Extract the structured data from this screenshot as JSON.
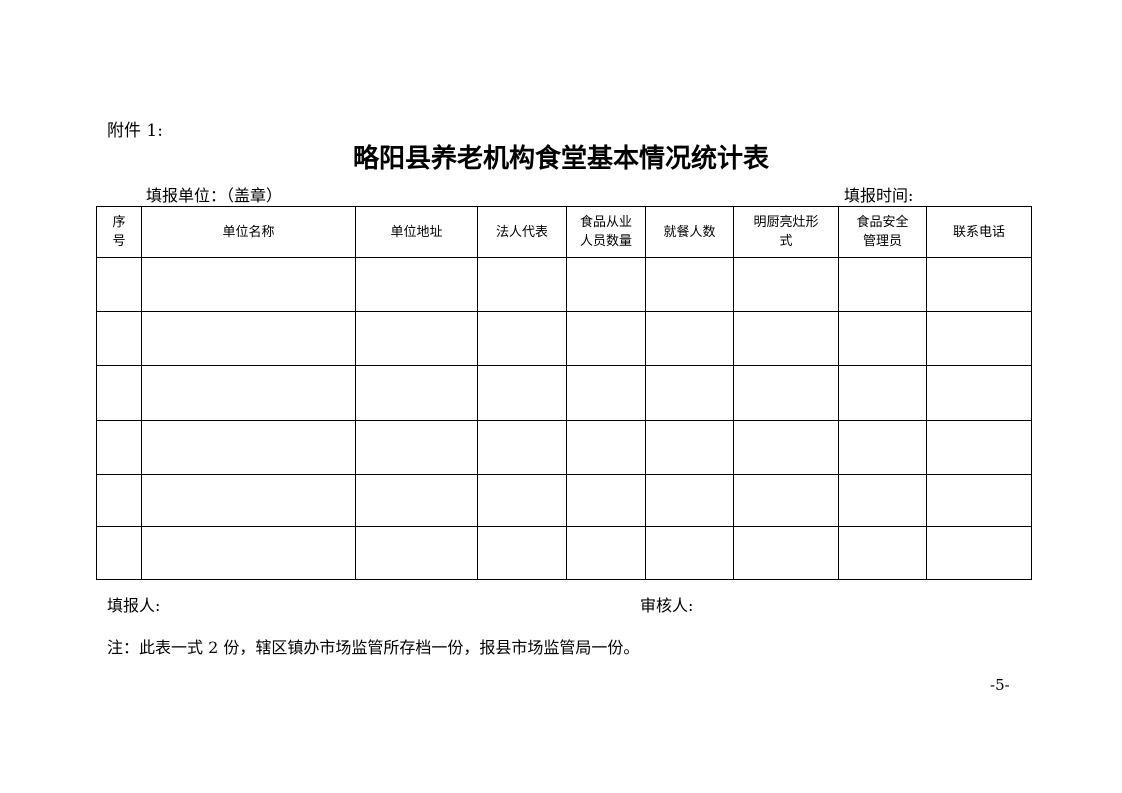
{
  "attachment_label": "附件 1:",
  "title": "略阳县养老机构食堂基本情况统计表",
  "fill_unit_label": "填报单位：（盖章）",
  "fill_time_label": "填报时间:",
  "table": {
    "headers": [
      "序\n号",
      "单位名称",
      "单位地址",
      "法人代表",
      "食品从业\n人员数量",
      "就餐人数",
      "明厨亮灶形\n式",
      "食品安全\n管理员",
      "联系电话"
    ],
    "rows": [
      [
        "",
        "",
        "",
        "",
        "",
        "",
        "",
        "",
        ""
      ],
      [
        "",
        "",
        "",
        "",
        "",
        "",
        "",
        "",
        ""
      ],
      [
        "",
        "",
        "",
        "",
        "",
        "",
        "",
        "",
        ""
      ],
      [
        "",
        "",
        "",
        "",
        "",
        "",
        "",
        "",
        ""
      ],
      [
        "",
        "",
        "",
        "",
        "",
        "",
        "",
        "",
        ""
      ],
      [
        "",
        "",
        "",
        "",
        "",
        "",
        "",
        "",
        ""
      ]
    ]
  },
  "filler_label": "填报人:",
  "reviewer_label": "审核人:",
  "note": "注：此表一式 2 份，辖区镇办市场监管所存档一份，报县市场监管局一份。",
  "page_number": "-5-"
}
